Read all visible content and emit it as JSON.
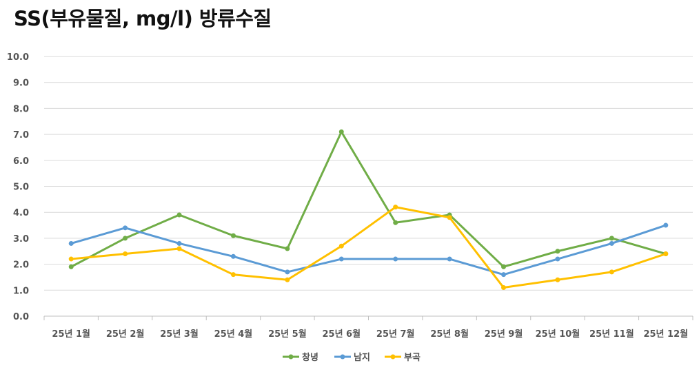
{
  "chart_data": {
    "type": "line",
    "title": "SS(부유물질, mg/l) 방류수질",
    "categories": [
      "25년 1월",
      "25년 2월",
      "25년 3월",
      "25년 4월",
      "25년 5월",
      "25년 6월",
      "25년 7월",
      "25년 8월",
      "25년 9월",
      "25년 10월",
      "25년 11월",
      "25년 12월"
    ],
    "series": [
      {
        "name": "창녕",
        "color": "#70ad47",
        "values": [
          1.9,
          3.0,
          3.9,
          3.1,
          2.6,
          7.1,
          3.6,
          3.9,
          1.9,
          2.5,
          3.0,
          2.4
        ]
      },
      {
        "name": "남지",
        "color": "#5b9bd5",
        "values": [
          2.8,
          3.4,
          2.8,
          2.3,
          1.7,
          2.2,
          2.2,
          2.2,
          1.6,
          2.2,
          2.8,
          3.5
        ]
      },
      {
        "name": "부곡",
        "color": "#ffc000",
        "values": [
          2.2,
          2.4,
          2.6,
          1.6,
          1.4,
          2.7,
          4.2,
          3.8,
          1.1,
          1.4,
          1.7,
          2.4
        ]
      }
    ],
    "yticks": [
      "0.0",
      "1.0",
      "2.0",
      "3.0",
      "4.0",
      "5.0",
      "6.0",
      "7.0",
      "8.0",
      "9.0",
      "10.0"
    ],
    "ylim": [
      0,
      10
    ],
    "xlabel": "",
    "ylabel": "",
    "grid": true,
    "legend": "bottom"
  }
}
